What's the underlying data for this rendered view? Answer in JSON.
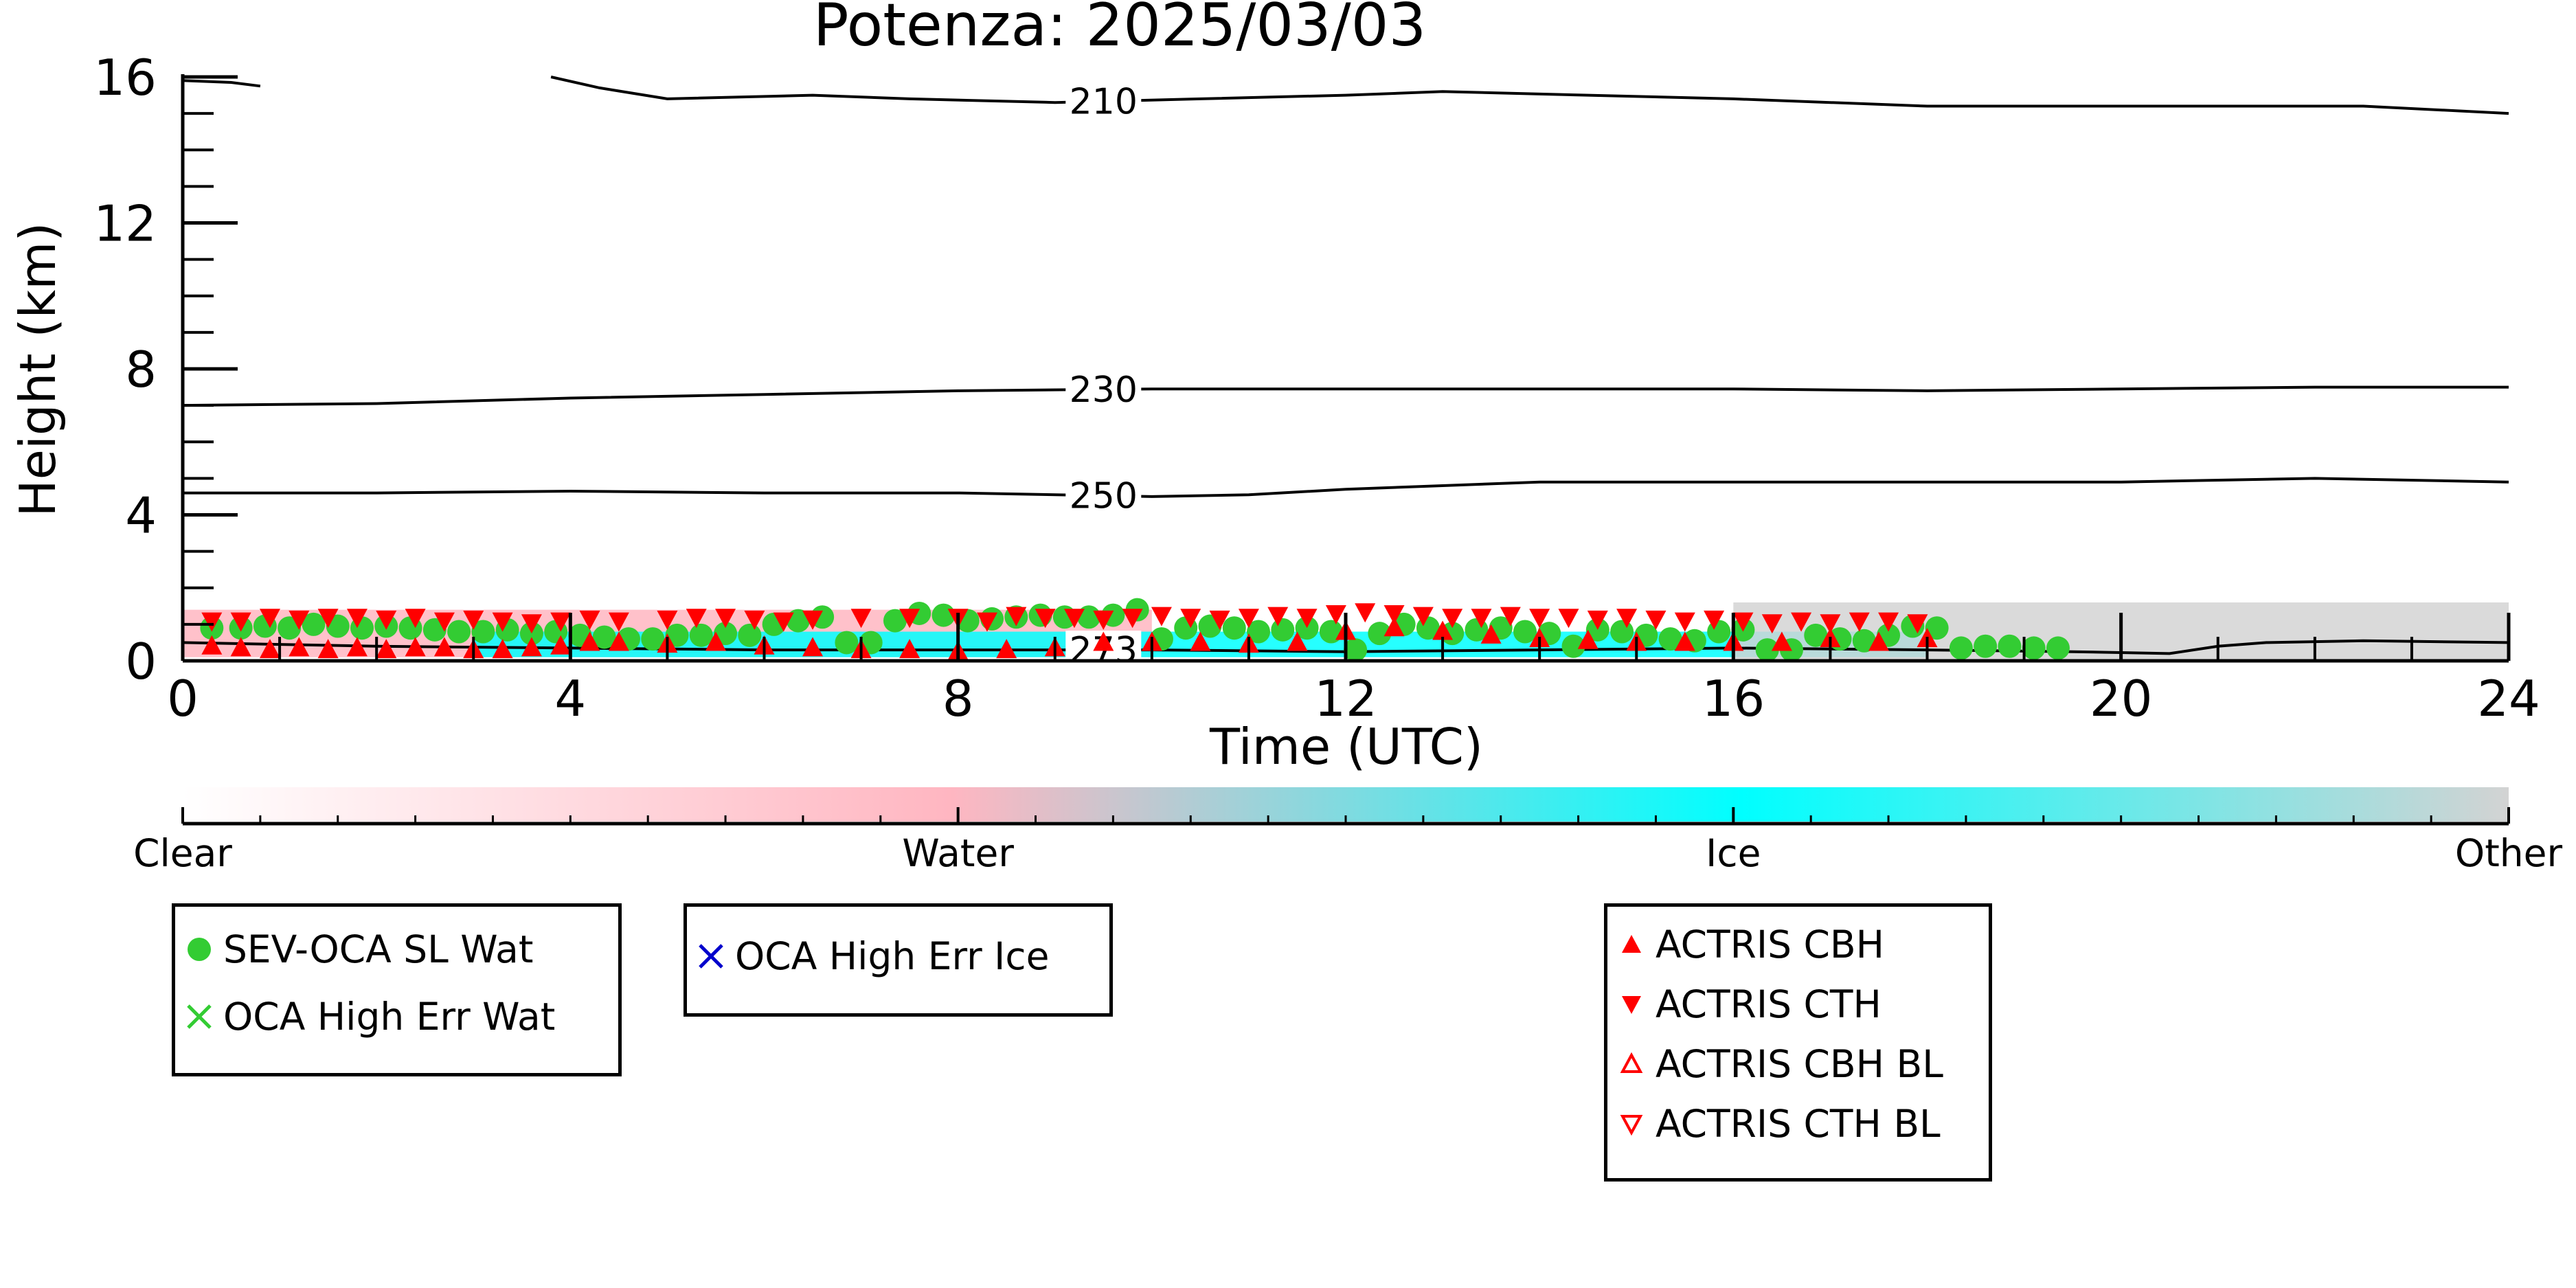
{
  "chart_data": {
    "type": "scatter",
    "title": "Potenza: 2025/03/03",
    "xlabel": "Time (UTC)",
    "ylabel": "Height (km)",
    "xlim": [
      0,
      24
    ],
    "ylim": [
      0,
      16
    ],
    "xticks": [
      "0",
      "4",
      "8",
      "12",
      "16",
      "20",
      "24"
    ],
    "yticks": [
      "0",
      "4",
      "8",
      "12",
      "16"
    ],
    "colorbar": {
      "labels": [
        "Clear",
        "Water",
        "Ice",
        "Other"
      ],
      "colors": [
        "#ffffff",
        "#ffb6c1",
        "#00ffff",
        "#d3d3d3"
      ]
    },
    "temperature_contours": [
      {
        "label": "210",
        "points": [
          [
            0,
            15.9
          ],
          [
            0.5,
            15.85
          ],
          [
            0.8,
            15.75
          ]
        ]
      },
      {
        "label": "210",
        "points": [
          [
            3.8,
            16
          ],
          [
            4.3,
            15.7
          ],
          [
            5,
            15.4
          ],
          [
            6.5,
            15.5
          ],
          [
            7.5,
            15.4
          ],
          [
            9,
            15.3
          ],
          [
            10.5,
            15.4
          ],
          [
            12,
            15.5
          ],
          [
            13,
            15.6
          ],
          [
            14.5,
            15.5
          ],
          [
            16,
            15.4
          ],
          [
            18,
            15.2
          ],
          [
            20,
            15.2
          ],
          [
            22.5,
            15.2
          ],
          [
            24,
            15.0
          ]
        ]
      },
      {
        "label": "230",
        "points": [
          [
            0,
            7.0
          ],
          [
            2,
            7.05
          ],
          [
            4,
            7.2
          ],
          [
            6,
            7.3
          ],
          [
            8,
            7.4
          ],
          [
            10,
            7.45
          ],
          [
            12,
            7.45
          ],
          [
            14,
            7.45
          ],
          [
            16,
            7.45
          ],
          [
            18,
            7.4
          ],
          [
            20,
            7.45
          ],
          [
            22,
            7.5
          ],
          [
            24,
            7.5
          ]
        ]
      },
      {
        "label": "250",
        "points": [
          [
            0,
            4.6
          ],
          [
            2,
            4.6
          ],
          [
            4,
            4.65
          ],
          [
            6,
            4.6
          ],
          [
            8,
            4.6
          ],
          [
            10,
            4.5
          ],
          [
            11,
            4.55
          ],
          [
            12,
            4.7
          ],
          [
            13,
            4.8
          ],
          [
            14,
            4.9
          ],
          [
            16,
            4.9
          ],
          [
            18,
            4.9
          ],
          [
            20,
            4.9
          ],
          [
            22,
            5.0
          ],
          [
            24,
            4.9
          ]
        ]
      },
      {
        "label": "273",
        "points": [
          [
            0,
            0.5
          ],
          [
            2,
            0.4
          ],
          [
            4,
            0.35
          ],
          [
            6,
            0.3
          ],
          [
            8,
            0.3
          ],
          [
            10,
            0.3
          ],
          [
            12,
            0.25
          ],
          [
            14,
            0.3
          ],
          [
            16,
            0.35
          ],
          [
            18,
            0.3
          ],
          [
            19.5,
            0.25
          ],
          [
            20.5,
            0.2
          ],
          [
            21,
            0.4
          ],
          [
            21.5,
            0.5
          ],
          [
            22.5,
            0.55
          ],
          [
            24,
            0.5
          ]
        ]
      }
    ],
    "cloud_mask": [
      {
        "category": "Water",
        "x": [
          0,
          10
        ],
        "y": [
          0.1,
          1.4
        ]
      },
      {
        "category": "Ice",
        "x": [
          3,
          18
        ],
        "y": [
          0.1,
          0.8
        ]
      },
      {
        "category": "Other",
        "x": [
          16,
          24
        ],
        "y": [
          0,
          1.6
        ]
      }
    ],
    "series": [
      {
        "name": "SEV-OCA SL Wat",
        "color": "#33cc33",
        "marker": "circle",
        "x": [
          0.3,
          0.6,
          0.85,
          1.1,
          1.35,
          1.6,
          1.85,
          2.1,
          2.35,
          2.6,
          2.85,
          3.1,
          3.35,
          3.6,
          3.85,
          4.1,
          4.35,
          4.6,
          4.85,
          5.1,
          5.35,
          5.6,
          5.85,
          6.1,
          6.35,
          6.6,
          6.85,
          7.1,
          7.35,
          7.6,
          7.85,
          8.1,
          8.35,
          8.6,
          8.85,
          9.1,
          9.35,
          9.6,
          9.85,
          10.1,
          10.35,
          10.6,
          10.85,
          11.1,
          11.35,
          11.6,
          11.85,
          12.1,
          12.35,
          12.6,
          12.85,
          13.1,
          13.35,
          13.6,
          13.85,
          14.1,
          14.35,
          14.6,
          14.85,
          15.1,
          15.35,
          15.6,
          15.85,
          16.1,
          16.35,
          16.6,
          16.85,
          17.1,
          17.35,
          17.6,
          17.85,
          18.1,
          18.35,
          18.6,
          18.85,
          19.1,
          19.35
        ],
        "y": [
          0.9,
          0.9,
          0.95,
          0.9,
          1.0,
          0.95,
          0.9,
          0.95,
          0.9,
          0.85,
          0.8,
          0.8,
          0.85,
          0.75,
          0.8,
          0.7,
          0.65,
          0.6,
          0.6,
          0.7,
          0.7,
          0.75,
          0.7,
          1.0,
          1.1,
          1.2,
          0.5,
          0.5,
          1.1,
          1.3,
          1.25,
          1.1,
          1.15,
          1.2,
          1.25,
          1.2,
          1.2,
          1.25,
          1.4,
          0.6,
          0.9,
          0.95,
          0.9,
          0.8,
          0.85,
          0.9,
          0.8,
          0.3,
          0.75,
          1.0,
          0.9,
          0.75,
          0.85,
          0.9,
          0.8,
          0.75,
          0.4,
          0.85,
          0.8,
          0.7,
          0.6,
          0.55,
          0.8,
          0.85,
          0.3,
          0.3,
          0.7,
          0.6,
          0.55,
          0.7,
          0.95,
          0.9,
          0.35,
          0.4,
          0.4,
          0.35,
          0.35
        ]
      },
      {
        "name": "OCA High Err Wat",
        "color": "#33cc33",
        "marker": "x",
        "x": [],
        "y": []
      },
      {
        "name": "OCA High Err Ice",
        "color": "#0000cc",
        "marker": "x",
        "x": [],
        "y": []
      },
      {
        "name": "ACTRIS CBH",
        "color": "#ff0000",
        "marker": "triangle-up",
        "x": [
          0.3,
          0.6,
          0.9,
          1.2,
          1.5,
          1.8,
          2.1,
          2.4,
          2.7,
          3.0,
          3.3,
          3.6,
          3.9,
          4.2,
          4.5,
          5.0,
          5.5,
          6.0,
          6.5,
          7.0,
          7.5,
          8.0,
          8.5,
          9.0,
          9.5,
          10.0,
          10.5,
          11.0,
          11.5,
          12.0,
          12.5,
          13.0,
          13.5,
          14.0,
          14.5,
          15.0,
          15.5,
          16.0,
          16.5,
          17.0,
          17.5,
          18.0
        ],
        "y": [
          0.4,
          0.35,
          0.3,
          0.35,
          0.3,
          0.35,
          0.3,
          0.35,
          0.35,
          0.3,
          0.3,
          0.35,
          0.4,
          0.5,
          0.5,
          0.45,
          0.5,
          0.4,
          0.35,
          0.3,
          0.3,
          0.25,
          0.3,
          0.35,
          0.5,
          0.5,
          0.5,
          0.45,
          0.5,
          0.8,
          0.9,
          0.8,
          0.7,
          0.6,
          0.55,
          0.5,
          0.5,
          0.5,
          0.5,
          0.6,
          0.5,
          0.6
        ]
      },
      {
        "name": "ACTRIS CTH",
        "color": "#ff0000",
        "marker": "triangle-down",
        "x": [
          0.3,
          0.6,
          0.9,
          1.2,
          1.5,
          1.8,
          2.1,
          2.4,
          2.7,
          3.0,
          3.3,
          3.6,
          3.9,
          4.2,
          4.5,
          5.0,
          5.3,
          5.6,
          5.9,
          6.2,
          6.5,
          7.0,
          7.5,
          8.0,
          8.3,
          8.6,
          8.9,
          9.2,
          9.5,
          9.8,
          10.1,
          10.4,
          10.7,
          11.0,
          11.3,
          11.6,
          11.9,
          12.2,
          12.5,
          12.8,
          13.1,
          13.4,
          13.7,
          14.0,
          14.3,
          14.6,
          14.9,
          15.2,
          15.5,
          15.8,
          16.1,
          16.4,
          16.7,
          17.0,
          17.3,
          17.6,
          17.9
        ],
        "y": [
          1.1,
          1.1,
          1.2,
          1.15,
          1.2,
          1.2,
          1.15,
          1.2,
          1.1,
          1.15,
          1.1,
          1.05,
          1.1,
          1.15,
          1.1,
          1.15,
          1.2,
          1.2,
          1.15,
          1.1,
          1.15,
          1.2,
          1.2,
          1.2,
          1.1,
          1.25,
          1.2,
          1.2,
          1.15,
          1.2,
          1.25,
          1.2,
          1.15,
          1.2,
          1.25,
          1.2,
          1.3,
          1.35,
          1.3,
          1.25,
          1.2,
          1.2,
          1.25,
          1.2,
          1.2,
          1.15,
          1.2,
          1.15,
          1.1,
          1.15,
          1.1,
          1.05,
          1.1,
          1.05,
          1.1,
          1.1,
          1.05
        ]
      },
      {
        "name": "ACTRIS CBH BL",
        "color": "#ff0000",
        "marker": "triangle-up-open",
        "x": [],
        "y": []
      },
      {
        "name": "ACTRIS CTH BL",
        "color": "#ff0000",
        "marker": "triangle-down-open",
        "x": [],
        "y": []
      }
    ],
    "grid": false
  },
  "legends": {
    "box1": [
      "SEV-OCA SL Wat",
      "OCA High Err Wat"
    ],
    "box2": [
      "OCA High Err Ice"
    ],
    "box3": [
      "ACTRIS CBH",
      "ACTRIS CTH",
      "ACTRIS CBH BL",
      "ACTRIS CTH BL"
    ]
  }
}
